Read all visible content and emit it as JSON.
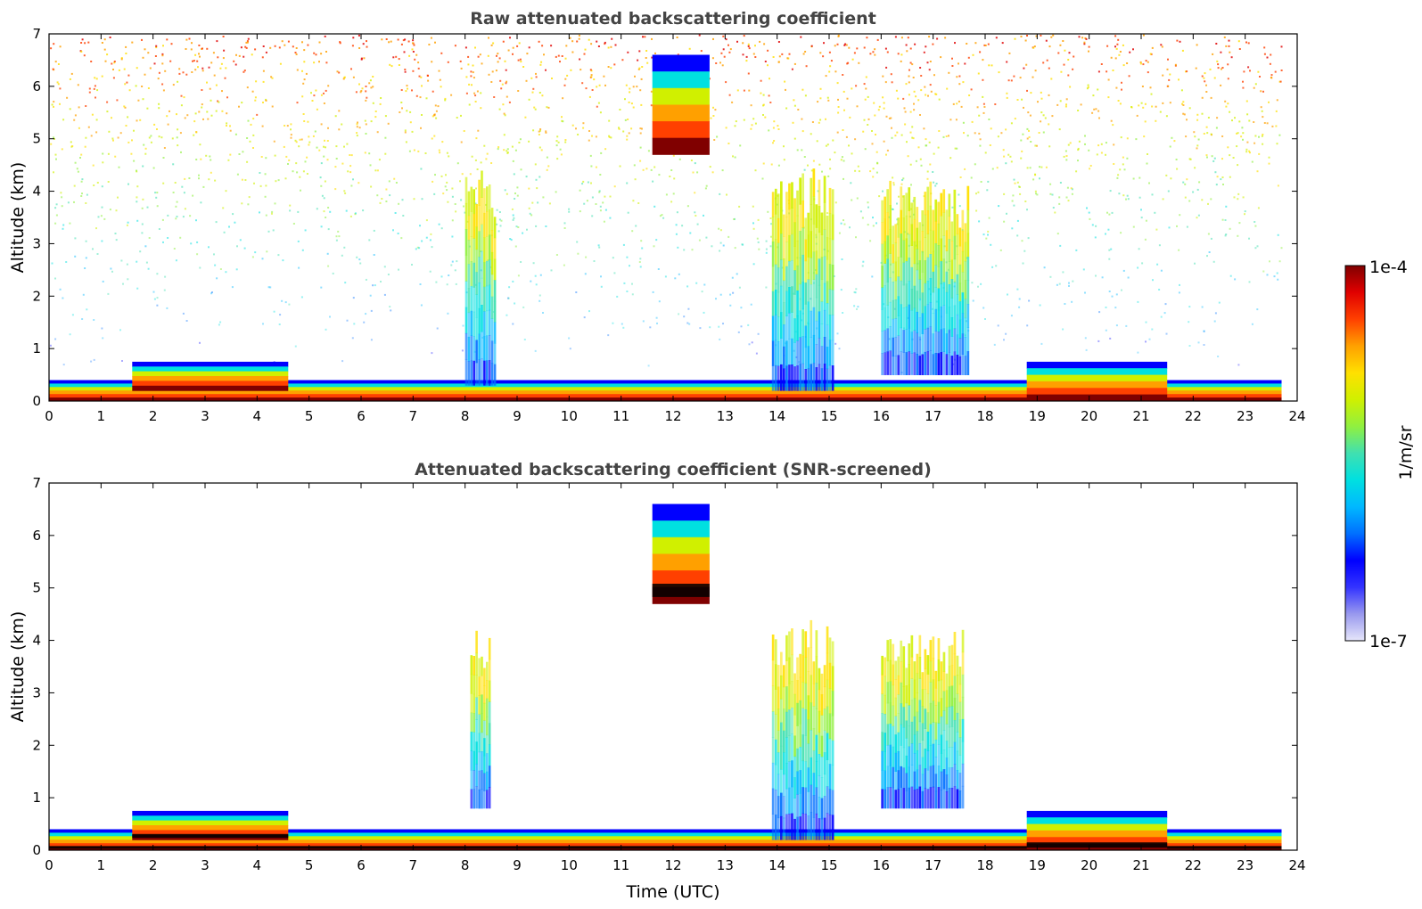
{
  "chart_data": [
    {
      "type": "heatmap",
      "title": "Raw attenuated backscattering coefficient",
      "xlabel": "",
      "ylabel": "Altitude (km)",
      "xlim": [
        0,
        24
      ],
      "ylim": [
        0,
        7
      ],
      "xticks": [
        "0",
        "1",
        "2",
        "3",
        "4",
        "5",
        "6",
        "7",
        "8",
        "9",
        "10",
        "11",
        "12",
        "13",
        "14",
        "15",
        "16",
        "17",
        "18",
        "19",
        "20",
        "21",
        "22",
        "23",
        "24"
      ],
      "yticks": [
        "0",
        "1",
        "2",
        "3",
        "4",
        "5",
        "6",
        "7"
      ],
      "data_extent_hours": [
        0,
        23.7
      ],
      "features": [
        {
          "name": "boundary-layer",
          "hours": [
            0,
            23.7
          ],
          "altitude_km": [
            0,
            0.4
          ],
          "level": "high"
        },
        {
          "name": "residual-layer",
          "hours": [
            1.6,
            4.6
          ],
          "altitude_km": [
            0.2,
            0.75
          ],
          "level": "high"
        },
        {
          "name": "cirrus-descending",
          "hours": [
            11.6,
            12.7
          ],
          "altitude_km": [
            4.7,
            6.6
          ],
          "level": "high"
        },
        {
          "name": "aerosol-plume-1",
          "hours": [
            8.0,
            8.6
          ],
          "altitude_km": [
            0.3,
            4.5
          ],
          "level": "medium"
        },
        {
          "name": "aerosol-plume-2",
          "hours": [
            13.9,
            15.1
          ],
          "altitude_km": [
            0.2,
            4.5
          ],
          "level": "medium"
        },
        {
          "name": "aerosol-plume-3",
          "hours": [
            16.0,
            17.7
          ],
          "altitude_km": [
            0.5,
            4.2
          ],
          "level": "medium"
        },
        {
          "name": "evening-layer",
          "hours": [
            18.8,
            21.5
          ],
          "altitude_km": [
            0,
            0.75
          ],
          "level": "high"
        }
      ]
    },
    {
      "type": "heatmap",
      "title": "Attenuated backscattering coefficient (SNR-screened)",
      "xlabel": "Time (UTC)",
      "ylabel": "Altitude (km)",
      "xlim": [
        0,
        24
      ],
      "ylim": [
        0,
        7
      ],
      "xticks": [
        "0",
        "1",
        "2",
        "3",
        "4",
        "5",
        "6",
        "7",
        "8",
        "9",
        "10",
        "11",
        "12",
        "13",
        "14",
        "15",
        "16",
        "17",
        "18",
        "19",
        "20",
        "21",
        "22",
        "23",
        "24"
      ],
      "yticks": [
        "0",
        "1",
        "2",
        "3",
        "4",
        "5",
        "6",
        "7"
      ],
      "data_extent_hours": [
        0,
        23.7
      ],
      "features": [
        {
          "name": "boundary-layer",
          "hours": [
            0,
            23.7
          ],
          "altitude_km": [
            0,
            0.4
          ],
          "level": "high"
        },
        {
          "name": "residual-layer",
          "hours": [
            1.6,
            4.6
          ],
          "altitude_km": [
            0.2,
            0.75
          ],
          "level": "high"
        },
        {
          "name": "cirrus-descending",
          "hours": [
            11.6,
            12.7
          ],
          "altitude_km": [
            4.7,
            6.6
          ],
          "level": "high"
        },
        {
          "name": "aerosol-plume-1",
          "hours": [
            8.1,
            8.5
          ],
          "altitude_km": [
            0.8,
            4.2
          ],
          "level": "medium"
        },
        {
          "name": "aerosol-plume-2",
          "hours": [
            13.9,
            15.1
          ],
          "altitude_km": [
            0.2,
            4.4
          ],
          "level": "medium"
        },
        {
          "name": "aerosol-plume-3",
          "hours": [
            16.0,
            17.6
          ],
          "altitude_km": [
            0.8,
            4.2
          ],
          "level": "medium"
        },
        {
          "name": "evening-layer",
          "hours": [
            18.8,
            21.5
          ],
          "altitude_km": [
            0,
            0.75
          ],
          "level": "high"
        }
      ]
    }
  ],
  "colorbar": {
    "min_label": "1e-7",
    "max_label": "1e-4",
    "unit_label": "1/m/sr",
    "colors": [
      "#e6e6fa",
      "#9999ee",
      "#3333ff",
      "#0000ff",
      "#0070ff",
      "#00b8ff",
      "#00e0e0",
      "#40e0b0",
      "#90f040",
      "#d0f000",
      "#ffe000",
      "#ffa000",
      "#ff4000",
      "#e00000",
      "#800000"
    ]
  }
}
